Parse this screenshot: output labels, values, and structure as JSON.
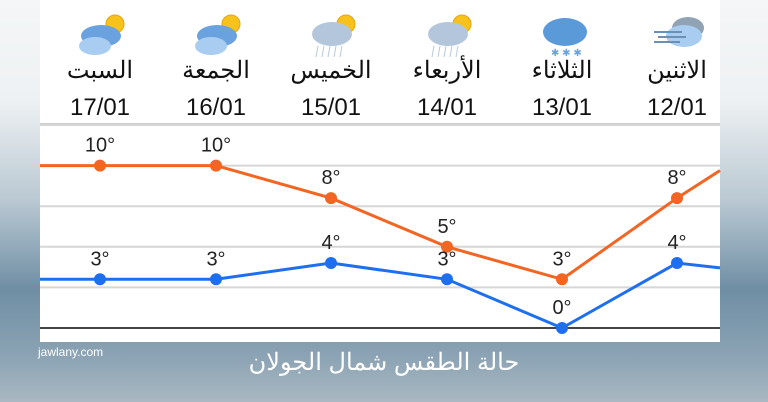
{
  "days": [
    {
      "name": "السبت",
      "date": "17/01",
      "icon": "partly-cloudy-sun-icon"
    },
    {
      "name": "الجمعة",
      "date": "16/01",
      "icon": "partly-cloudy-sun-icon"
    },
    {
      "name": "الخميس",
      "date": "15/01",
      "icon": "rain-cloud-sun-icon"
    },
    {
      "name": "الأربعاء",
      "date": "14/01",
      "icon": "rain-cloud-sun-icon"
    },
    {
      "name": "الثلاثاء",
      "date": "13/01",
      "icon": "snow-cloud-icon"
    },
    {
      "name": "الاثنين",
      "date": "12/01",
      "icon": "wind-cloud-icon"
    }
  ],
  "chart_data": {
    "type": "line",
    "categories": [
      "17/01",
      "16/01",
      "15/01",
      "14/01",
      "13/01",
      "12/01"
    ],
    "series": [
      {
        "values": [
          10,
          10,
          8,
          5,
          3,
          8
        ],
        "labels": [
          "10°",
          "10°",
          "8°",
          "5°",
          "3°",
          "8°"
        ],
        "color": "#f26522"
      },
      {
        "values": [
          3,
          3,
          4,
          3,
          0,
          4
        ],
        "labels": [
          "3°",
          "3°",
          "4°",
          "3°",
          "0°",
          "4°"
        ],
        "color": "#1e6ff0"
      }
    ],
    "ylim": [
      0,
      12.5
    ],
    "grid": true
  },
  "footer": {
    "site": "jawlany.com",
    "caption": "حالة الطقس شمال الجولان"
  }
}
